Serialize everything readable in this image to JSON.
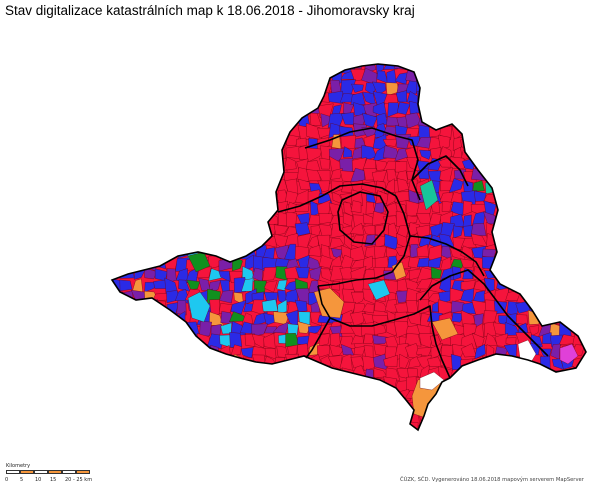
{
  "title": "Stav digitalizace katastrálních map k 18.06.2018 - Jihomoravsky kraj",
  "colors": {
    "background": "#ffffff",
    "red": "#f5143c",
    "blue": "#2a2ae6",
    "purple": "#7a1fa8",
    "cyan": "#1ec8f0",
    "green": "#10901e",
    "teal": "#18c49a",
    "orange": "#f5963c",
    "magenta": "#e040d8",
    "border_thin": "#6a0010",
    "border_thick": "#000000"
  },
  "legend_note": "no category legend visible in screenshot",
  "scale_bar": {
    "unit_label": "Kilometry",
    "ticks": [
      "0",
      "5",
      "10",
      "15",
      "20 - 25 km"
    ]
  },
  "credit": "ČÚZK, SČD. Vygenerováno 18.06.2018 mapovým serverem MapServer",
  "districts_count": 7
}
